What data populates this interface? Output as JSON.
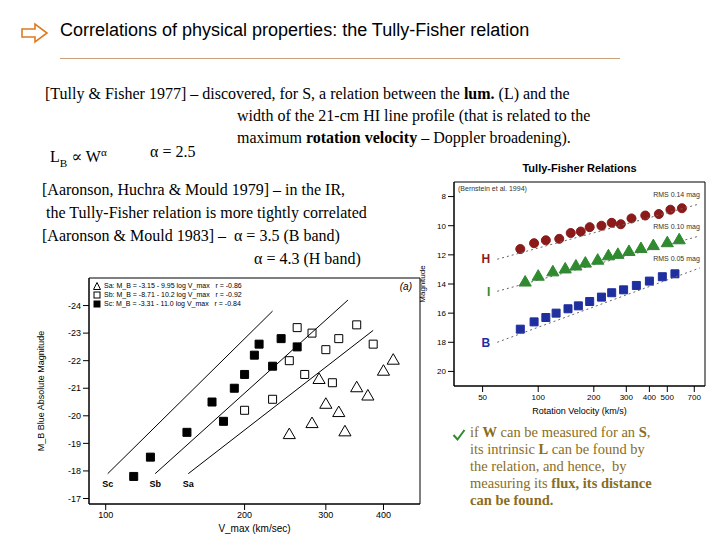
{
  "title": "Correlations of physical properties: the Tully-Fisher relation",
  "intro": [
    [
      {
        "text": "[Tully & Fisher 1977] – discovered, for S, a relation between the "
      },
      {
        "text": "lum.",
        "bold": true
      },
      {
        "text": " (L) and the"
      }
    ],
    [
      {
        "text": "width of the 21-cm HI line profile (that is related to the"
      }
    ],
    [
      {
        "text": "maximum "
      },
      {
        "text": "rotation velocity",
        "bold": true
      },
      {
        "text": " – Doppler broadening)."
      }
    ]
  ],
  "formula": [
    {
      "text": "L"
    },
    {
      "text": "B",
      "sub": true
    },
    {
      "text": " ∝ W"
    },
    {
      "text": "α",
      "sup": true
    }
  ],
  "alpha": "α = 2.5",
  "ir": [
    [
      {
        "text": "[Aaronson, Huchra & Mould 1979] – in the IR,"
      }
    ],
    [
      {
        "text": "the Tully-Fisher relation is more tightly correlated"
      }
    ],
    [
      {
        "text": "[Aaronson & Mould 1983] –  α = 3.5 (B band)"
      }
    ],
    [
      {
        "text": "α = 4.3 (H band)"
      }
    ]
  ],
  "conclusion": [
    [
      {
        "text": "if "
      },
      {
        "text": "W",
        "bold": true
      },
      {
        "text": " can be measured for an "
      },
      {
        "text": "S",
        "bold": true
      },
      {
        "text": ","
      }
    ],
    [
      {
        "text": "its intrinsic "
      },
      {
        "text": "L",
        "bold": true
      },
      {
        "text": " can be found by"
      }
    ],
    [
      {
        "text": "the relation, and hence,  by"
      }
    ],
    [
      {
        "text": "measuring its "
      },
      {
        "text": "flux, its distance",
        "bold": true
      }
    ],
    [
      {
        "text": "can be found.",
        "bold": true
      }
    ]
  ],
  "chart_data": [
    {
      "type": "scatter",
      "panel": "(a)",
      "x_label": "V_max (km/sec)",
      "y_label": "M_B Blue Absolute Magnitude",
      "log": "x",
      "xlim": [
        92,
        480
      ],
      "xticks": [
        100,
        200,
        300,
        400
      ],
      "ylim": [
        -16.8,
        -25
      ],
      "yticks": [
        -24,
        -23,
        -22,
        -21,
        -20,
        -19,
        -18,
        -17
      ],
      "grid": false,
      "legend": "upper left",
      "series": [
        {
          "name": "Sa",
          "equation": "Sa: M_B = -3.15 - 9.95 log V_max   r = -0.86",
          "marker": "open_triangle",
          "color": "#000000",
          "x": [
            250,
            280,
            290,
            300,
            320,
            330,
            350,
            370,
            400,
            420
          ],
          "values": [
            -19.3,
            -19.7,
            -21.3,
            -20.4,
            -20.1,
            -19.4,
            -21.0,
            -20.7,
            -21.6,
            -22.0
          ],
          "fit": {
            "x": [
              151,
              380
            ],
            "values": [
              -17.9,
              -23.1
            ],
            "line_style": "solid"
          }
        },
        {
          "name": "Sb",
          "equation": "Sb: M_B = -8.71 - 10.2 log V_max   r = -0.92",
          "marker": "open_square",
          "color": "#000000",
          "x": [
            200,
            230,
            250,
            260,
            270,
            280,
            300,
            310,
            320,
            350,
            380
          ],
          "values": [
            -20.2,
            -20.6,
            -22.0,
            -23.2,
            -21.5,
            -23.0,
            -22.4,
            -21.2,
            -22.8,
            -23.3,
            -22.6
          ],
          "fit": {
            "x": [
              128,
              335
            ],
            "values": [
              -17.9,
              -24.2
            ],
            "line_style": "solid"
          }
        },
        {
          "name": "Sc",
          "equation": "Sc: M_B = -3.31 - 11.0 log V_max   r = -0.84",
          "marker": "square",
          "color": "#000000",
          "x": [
            115,
            125,
            150,
            170,
            180,
            190,
            200,
            210,
            215,
            230,
            240,
            260
          ],
          "values": [
            -17.8,
            -18.5,
            -19.4,
            -20.5,
            -19.8,
            -21.0,
            -21.5,
            -22.2,
            -22.6,
            -21.8,
            -22.8,
            -22.5
          ],
          "fit": {
            "x": [
              101,
              230
            ],
            "values": [
              -17.9,
              -23.8
            ],
            "line_style": "solid"
          }
        }
      ]
    },
    {
      "type": "scatter",
      "title": "Tully-Fisher Relations",
      "source": "(Bernstein et al. 1994)",
      "x_label": "Rotation Velocity (km/s)",
      "y_label": "Magnitude",
      "log": "x",
      "xlim": [
        35,
        800
      ],
      "xticks": [
        50,
        100,
        200,
        300,
        400,
        500,
        700
      ],
      "ylim": [
        21,
        7
      ],
      "yticks": [
        8,
        10,
        12,
        14,
        16,
        18,
        20
      ],
      "grid": false,
      "series": [
        {
          "name": "H",
          "annotation": "RMS 0.14 mag",
          "marker": "circle",
          "color": "#8b1a1a",
          "x": [
            80,
            95,
            110,
            130,
            150,
            170,
            190,
            220,
            250,
            280,
            320,
            380,
            450,
            520,
            600
          ],
          "values": [
            11.6,
            11.2,
            11.0,
            10.9,
            10.5,
            10.4,
            10.1,
            10.0,
            9.8,
            9.9,
            9.5,
            9.3,
            9.2,
            8.9,
            8.8
          ],
          "fit": {
            "x": [
              60,
              750
            ],
            "values": [
              12.3,
              8.5
            ],
            "line_style": "dotted"
          }
        },
        {
          "name": "I",
          "annotation": "RMS 0.10 mag",
          "marker": "triangle",
          "color": "#2e8b2e",
          "x": [
            85,
            100,
            120,
            140,
            160,
            180,
            210,
            240,
            270,
            310,
            360,
            420,
            500,
            580
          ],
          "values": [
            13.9,
            13.5,
            13.2,
            13.0,
            12.8,
            12.6,
            12.4,
            12.1,
            12.0,
            11.8,
            11.6,
            11.4,
            11.2,
            11.0
          ],
          "fit": {
            "x": [
              60,
              750
            ],
            "values": [
              14.5,
              10.7
            ],
            "line_style": "dotted"
          }
        },
        {
          "name": "B",
          "annotation": "RMS 0.05 mag",
          "marker": "square",
          "color": "#1f2f9f",
          "x": [
            80,
            95,
            110,
            125,
            145,
            165,
            190,
            220,
            250,
            290,
            340,
            400,
            470,
            550
          ],
          "values": [
            17.1,
            16.6,
            16.3,
            16.0,
            15.7,
            15.5,
            15.2,
            14.9,
            14.6,
            14.4,
            14.1,
            13.8,
            13.5,
            13.3
          ],
          "fit": {
            "x": [
              60,
              750
            ],
            "values": [
              18.0,
              12.9
            ],
            "line_style": "dotted"
          }
        }
      ]
    }
  ]
}
